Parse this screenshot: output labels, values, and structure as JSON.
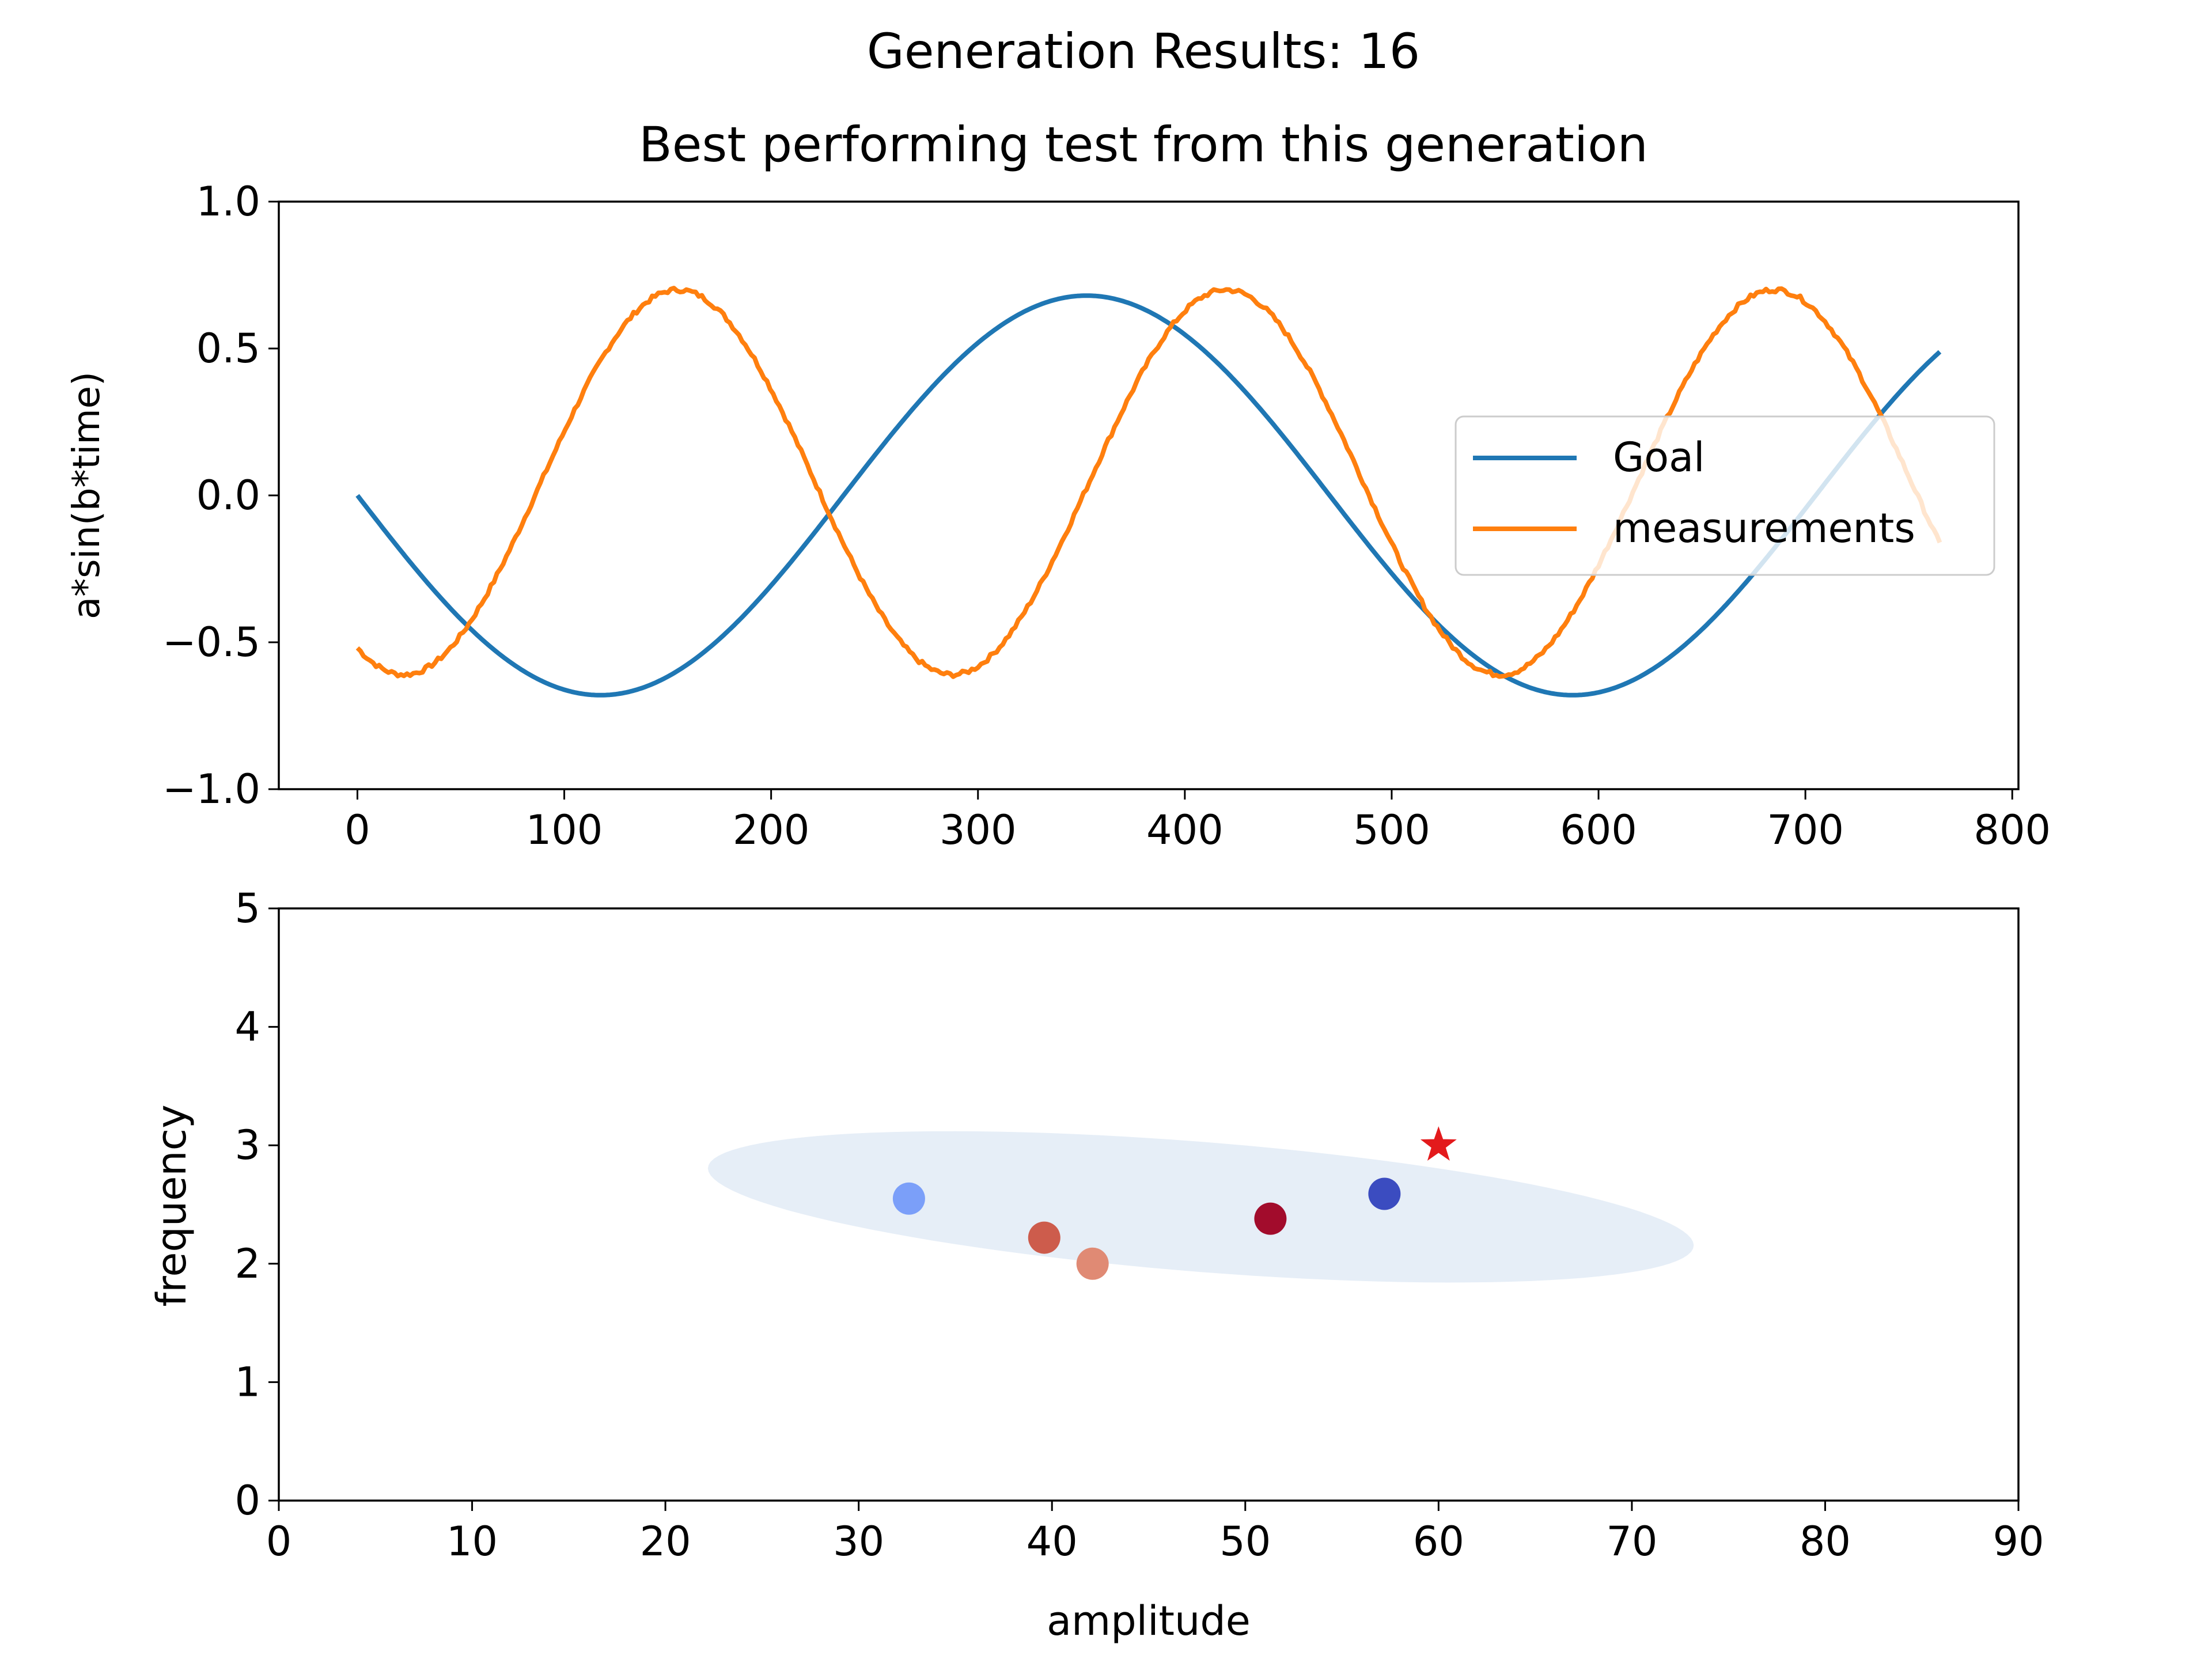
{
  "figure": {
    "suptitle": "Generation Results: 16"
  },
  "colors": {
    "goal": "#1f77b4",
    "measurements": "#ff7f0e",
    "ellipse": "#e6eef7",
    "star": "#e31a1c"
  },
  "chart_data": [
    {
      "type": "line",
      "title": "Best performing test from this generation",
      "xlabel": "",
      "ylabel": "a*sin(b*time)",
      "xlim": [
        -38,
        803
      ],
      "ylim": [
        -1.0,
        1.0
      ],
      "x_ticks": [
        0,
        100,
        200,
        300,
        400,
        500,
        600,
        700,
        800
      ],
      "x_tick_labels": [
        "0",
        "100",
        "200",
        "300",
        "400",
        "500",
        "600",
        "700",
        "800"
      ],
      "y_ticks": [
        -1.0,
        -0.5,
        0.0,
        0.5,
        1.0
      ],
      "y_tick_labels": [
        "−1.0",
        "−0.5",
        "0.0",
        "0.5",
        "1.0"
      ],
      "grid": false,
      "legend": {
        "placement": "center-right",
        "entries": [
          "Goal",
          "measurements"
        ]
      },
      "series": [
        {
          "name": "Goal",
          "model": {
            "amplitude": 0.68,
            "period": 470,
            "phase_x": 0,
            "sign": -1
          },
          "x_range": [
            0,
            765
          ]
        },
        {
          "name": "measurements",
          "model": {
            "amplitude": 0.655,
            "offset": 0.045,
            "period": 265,
            "peak_x": 155,
            "noise": 0.008
          },
          "x_range": [
            0,
            765
          ]
        }
      ]
    },
    {
      "type": "scatter",
      "xlabel": "amplitude",
      "ylabel": "frequency",
      "xlim": [
        0,
        90
      ],
      "ylim": [
        0,
        5
      ],
      "x_ticks": [
        0,
        10,
        20,
        30,
        40,
        50,
        60,
        70,
        80,
        90
      ],
      "x_tick_labels": [
        "0",
        "10",
        "20",
        "30",
        "40",
        "50",
        "60",
        "70",
        "80",
        "90"
      ],
      "y_ticks": [
        0,
        1,
        2,
        3,
        4,
        5
      ],
      "y_tick_labels": [
        "0",
        "1",
        "2",
        "3",
        "4",
        "5"
      ],
      "grid": false,
      "ellipse": {
        "center": [
          47.7,
          2.48
        ],
        "semi_major_x": [
          25.5,
          -0.325
        ],
        "semi_minor_x": [
          1.35,
          1.1
        ]
      },
      "points": [
        {
          "x": 32.6,
          "y": 2.55,
          "color": "#7b9ff9"
        },
        {
          "x": 39.6,
          "y": 2.22,
          "color": "#cd5c4c"
        },
        {
          "x": 42.1,
          "y": 2.0,
          "color": "#e08a74"
        },
        {
          "x": 51.3,
          "y": 2.38,
          "color": "#a20c2c"
        },
        {
          "x": 57.2,
          "y": 2.59,
          "color": "#3b4cc0"
        }
      ],
      "target": {
        "x": 60.0,
        "y": 3.0,
        "marker": "star"
      }
    }
  ]
}
